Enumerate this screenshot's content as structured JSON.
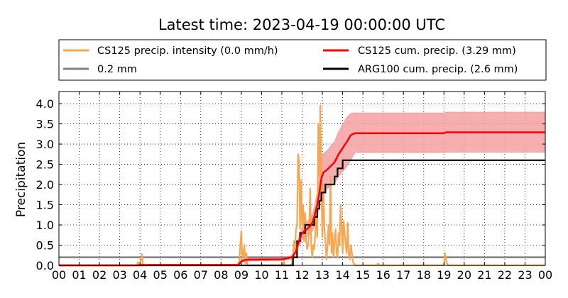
{
  "chart_data": {
    "type": "line",
    "title": "Latest time: 2023-04-19 00:00:00 UTC",
    "xlabel": "",
    "ylabel": "Precipitation",
    "xlim": [
      0,
      24
    ],
    "ylim": [
      0,
      4.3
    ],
    "x_tick_labels": [
      "00",
      "01",
      "02",
      "03",
      "04",
      "05",
      "06",
      "07",
      "08",
      "09",
      "10",
      "11",
      "12",
      "13",
      "14",
      "15",
      "16",
      "17",
      "18",
      "19",
      "20",
      "21",
      "22",
      "23",
      "00"
    ],
    "y_ticks": [
      "0.0",
      "0.5",
      "1.0",
      "1.5",
      "2.0",
      "2.5",
      "3.0",
      "3.5",
      "4.0"
    ],
    "grid": true,
    "legend_position": "top",
    "colors": {
      "intensity": "#faa550",
      "threshold": "#808080",
      "cs125_cum": "#ff0000",
      "cs125_band": "#f4a0a0",
      "arg100_cum": "#000000"
    },
    "series": [
      {
        "name": "CS125 precip. intensity (0.0 mm/h)",
        "points": [
          [
            0,
            0
          ],
          [
            3.85,
            0
          ],
          [
            3.9,
            0.08
          ],
          [
            3.95,
            0
          ],
          [
            4.0,
            0
          ],
          [
            4.1,
            0.28
          ],
          [
            4.15,
            0
          ],
          [
            8.8,
            0
          ],
          [
            8.9,
            0.1
          ],
          [
            8.95,
            0.5
          ],
          [
            9.0,
            0.85
          ],
          [
            9.05,
            0.1
          ],
          [
            9.1,
            0.3
          ],
          [
            9.15,
            0.5
          ],
          [
            9.2,
            0.05
          ],
          [
            9.25,
            0.3
          ],
          [
            9.3,
            0
          ],
          [
            11.05,
            0
          ],
          [
            11.1,
            0.1
          ],
          [
            11.15,
            0
          ],
          [
            11.45,
            0
          ],
          [
            11.5,
            0.05
          ],
          [
            11.55,
            0.3
          ],
          [
            11.6,
            0.6
          ],
          [
            11.65,
            0.4
          ],
          [
            11.7,
            0.9
          ],
          [
            11.75,
            1.0
          ],
          [
            11.8,
            2.75
          ],
          [
            11.85,
            2.6
          ],
          [
            11.9,
            0.9
          ],
          [
            11.95,
            2.1
          ],
          [
            12.0,
            1.0
          ],
          [
            12.05,
            1.5
          ],
          [
            12.1,
            0.6
          ],
          [
            12.15,
            1.3
          ],
          [
            12.2,
            0.6
          ],
          [
            12.25,
            0.4
          ],
          [
            12.3,
            0.5
          ],
          [
            12.35,
            1.0
          ],
          [
            12.4,
            1.9
          ],
          [
            12.45,
            0.5
          ],
          [
            12.5,
            0.2
          ],
          [
            12.55,
            0.5
          ],
          [
            12.6,
            0.4
          ],
          [
            12.65,
            0.8
          ],
          [
            12.7,
            1.4
          ],
          [
            12.75,
            0.7
          ],
          [
            12.8,
            3.5
          ],
          [
            12.85,
            2.2
          ],
          [
            12.9,
            3.95
          ],
          [
            12.95,
            2.1
          ],
          [
            13.0,
            0.7
          ],
          [
            13.05,
            2.0
          ],
          [
            13.1,
            0.9
          ],
          [
            13.15,
            0.6
          ],
          [
            13.2,
            0.15
          ],
          [
            13.25,
            0.45
          ],
          [
            13.3,
            1.0
          ],
          [
            13.35,
            0.5
          ],
          [
            13.4,
            2.2
          ],
          [
            13.45,
            0.3
          ],
          [
            13.5,
            0.8
          ],
          [
            13.55,
            0.2
          ],
          [
            13.6,
            0.6
          ],
          [
            13.65,
            0.9
          ],
          [
            13.7,
            0.3
          ],
          [
            13.75,
            0.2
          ],
          [
            13.8,
            0.8
          ],
          [
            13.85,
            0.5
          ],
          [
            13.9,
            1.5
          ],
          [
            13.95,
            0.9
          ],
          [
            14.0,
            0.3
          ],
          [
            14.05,
            1.1
          ],
          [
            14.1,
            0.8
          ],
          [
            14.15,
            0.5
          ],
          [
            14.2,
            0.3
          ],
          [
            14.25,
            1.05
          ],
          [
            14.3,
            0.3
          ],
          [
            14.35,
            0.15
          ],
          [
            14.4,
            0.5
          ],
          [
            14.45,
            0.35
          ],
          [
            14.5,
            0.1
          ],
          [
            14.55,
            0.05
          ],
          [
            14.6,
            0
          ],
          [
            15.7,
            0
          ],
          [
            15.75,
            0.05
          ],
          [
            15.8,
            0
          ],
          [
            19.0,
            0
          ],
          [
            19.05,
            0.3
          ],
          [
            19.1,
            0.15
          ],
          [
            19.15,
            0.05
          ],
          [
            19.2,
            0
          ],
          [
            24,
            0
          ]
        ]
      },
      {
        "name": "0.2 mm",
        "points": [
          [
            0,
            0.2
          ],
          [
            24,
            0.2
          ]
        ]
      },
      {
        "name": "CS125 cum. precip. (3.29 mm)",
        "points": [
          [
            0,
            0
          ],
          [
            3.9,
            0
          ],
          [
            4.1,
            0.01
          ],
          [
            8.85,
            0.01
          ],
          [
            9.0,
            0.1
          ],
          [
            9.15,
            0.13
          ],
          [
            9.3,
            0.14
          ],
          [
            11.0,
            0.15
          ],
          [
            11.5,
            0.2
          ],
          [
            11.7,
            0.35
          ],
          [
            11.85,
            0.6
          ],
          [
            12.0,
            0.8
          ],
          [
            12.2,
            0.88
          ],
          [
            12.4,
            0.97
          ],
          [
            12.5,
            1.05
          ],
          [
            12.6,
            1.2
          ],
          [
            12.75,
            1.5
          ],
          [
            12.85,
            1.8
          ],
          [
            12.95,
            2.15
          ],
          [
            13.05,
            2.3
          ],
          [
            13.2,
            2.35
          ],
          [
            13.4,
            2.45
          ],
          [
            13.6,
            2.55
          ],
          [
            13.8,
            2.75
          ],
          [
            14.0,
            2.9
          ],
          [
            14.2,
            3.05
          ],
          [
            14.4,
            3.22
          ],
          [
            14.6,
            3.27
          ],
          [
            19.0,
            3.27
          ],
          [
            19.1,
            3.29
          ],
          [
            24,
            3.29
          ]
        ],
        "band_upper": [
          [
            0,
            0
          ],
          [
            3.9,
            0
          ],
          [
            4.1,
            0.01
          ],
          [
            8.85,
            0.01
          ],
          [
            9.0,
            0.13
          ],
          [
            9.15,
            0.16
          ],
          [
            9.3,
            0.17
          ],
          [
            11.0,
            0.18
          ],
          [
            11.5,
            0.24
          ],
          [
            11.7,
            0.42
          ],
          [
            11.85,
            0.72
          ],
          [
            12.0,
            0.96
          ],
          [
            12.2,
            1.06
          ],
          [
            12.4,
            1.16
          ],
          [
            12.5,
            1.26
          ],
          [
            12.6,
            1.44
          ],
          [
            12.75,
            1.8
          ],
          [
            12.85,
            2.16
          ],
          [
            12.95,
            2.58
          ],
          [
            13.05,
            2.76
          ],
          [
            13.2,
            2.82
          ],
          [
            13.4,
            2.94
          ],
          [
            13.6,
            3.06
          ],
          [
            13.8,
            3.3
          ],
          [
            14.0,
            3.48
          ],
          [
            14.2,
            3.66
          ],
          [
            14.4,
            3.76
          ],
          [
            14.6,
            3.77
          ],
          [
            19.0,
            3.77
          ],
          [
            19.1,
            3.79
          ],
          [
            24,
            3.79
          ]
        ],
        "band_lower": [
          [
            0,
            0
          ],
          [
            3.9,
            0
          ],
          [
            4.1,
            0.01
          ],
          [
            8.85,
            0.01
          ],
          [
            9.0,
            0.08
          ],
          [
            9.15,
            0.1
          ],
          [
            9.3,
            0.11
          ],
          [
            11.0,
            0.12
          ],
          [
            11.5,
            0.16
          ],
          [
            11.7,
            0.28
          ],
          [
            11.85,
            0.48
          ],
          [
            12.0,
            0.64
          ],
          [
            12.2,
            0.7
          ],
          [
            12.4,
            0.78
          ],
          [
            12.5,
            0.84
          ],
          [
            12.6,
            0.96
          ],
          [
            12.75,
            1.2
          ],
          [
            12.85,
            1.44
          ],
          [
            12.95,
            1.72
          ],
          [
            13.05,
            1.84
          ],
          [
            13.2,
            1.88
          ],
          [
            13.4,
            1.96
          ],
          [
            13.6,
            2.04
          ],
          [
            13.8,
            2.2
          ],
          [
            14.0,
            2.32
          ],
          [
            14.2,
            2.44
          ],
          [
            14.4,
            2.6
          ],
          [
            14.6,
            2.79
          ],
          [
            19.0,
            2.79
          ],
          [
            19.1,
            2.8
          ],
          [
            24,
            2.8
          ]
        ]
      },
      {
        "name": "ARG100 cum. precip. (2.6 mm)",
        "step_points": [
          [
            0,
            0
          ],
          [
            11.55,
            0.2
          ],
          [
            11.75,
            0.6
          ],
          [
            11.9,
            0.8
          ],
          [
            12.15,
            1.0
          ],
          [
            12.6,
            1.2
          ],
          [
            12.75,
            1.4
          ],
          [
            12.85,
            1.6
          ],
          [
            12.95,
            1.8
          ],
          [
            13.15,
            2.0
          ],
          [
            13.6,
            2.2
          ],
          [
            13.75,
            2.4
          ],
          [
            14.0,
            2.6
          ],
          [
            24,
            2.6
          ]
        ]
      }
    ]
  }
}
